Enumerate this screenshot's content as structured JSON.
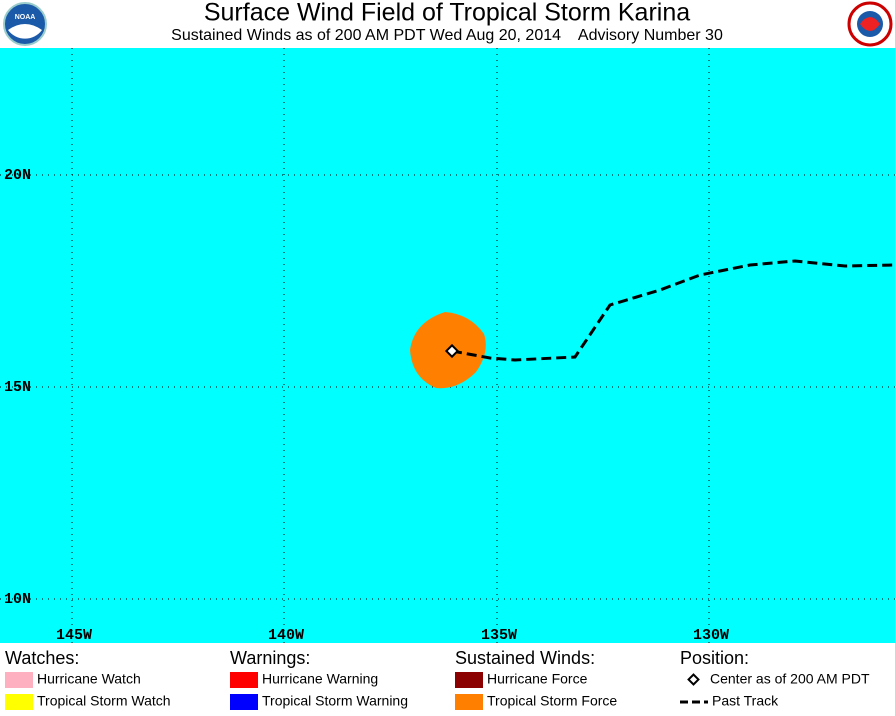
{
  "header": {
    "title": "Surface Wind Field of Tropical Storm Karina",
    "subtitle": "Sustained Winds as of 200 AM PDT Wed Aug 20, 2014    Advisory Number 30",
    "left_logo": "NOAA"
  },
  "map": {
    "latitude_labels": [
      "20N",
      "15N",
      "10N"
    ],
    "longitude_labels": [
      "145W",
      "140W",
      "135W",
      "130W"
    ]
  },
  "legend": {
    "watches": {
      "title": "Watches:",
      "items": [
        "Hurricane Watch",
        "Tropical Storm Watch"
      ]
    },
    "warnings": {
      "title": "Warnings:",
      "items": [
        "Hurricane Warning",
        "Tropical Storm Warning"
      ]
    },
    "winds": {
      "title": "Sustained Winds:",
      "items": [
        "Hurricane Force",
        "Tropical Storm Force"
      ]
    },
    "position": {
      "title": "Position:",
      "items": [
        "Center as of 200 AM PDT",
        "Past Track"
      ]
    }
  }
}
